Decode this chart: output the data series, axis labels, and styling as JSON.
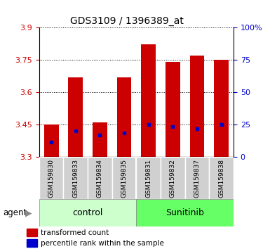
{
  "title": "GDS3109 / 1396389_at",
  "samples": [
    "GSM159830",
    "GSM159833",
    "GSM159834",
    "GSM159835",
    "GSM159831",
    "GSM159832",
    "GSM159837",
    "GSM159838"
  ],
  "groups": [
    "control",
    "control",
    "control",
    "control",
    "Sunitinib",
    "Sunitinib",
    "Sunitinib",
    "Sunitinib"
  ],
  "bar_tops": [
    3.45,
    3.67,
    3.46,
    3.67,
    3.82,
    3.74,
    3.77,
    3.75
  ],
  "bar_bottoms": [
    3.3,
    3.3,
    3.3,
    3.3,
    3.3,
    3.3,
    3.3,
    3.3
  ],
  "blue_markers": [
    3.37,
    3.42,
    3.4,
    3.41,
    3.45,
    3.44,
    3.43,
    3.45
  ],
  "ymin": 3.3,
  "ymax": 3.9,
  "yticks": [
    3.3,
    3.45,
    3.6,
    3.75,
    3.9
  ],
  "ytick_labels": [
    "3.3",
    "3.45",
    "3.6",
    "3.75",
    "3.9"
  ],
  "right_yticks": [
    0,
    25,
    50,
    75,
    100
  ],
  "right_ytick_labels": [
    "0",
    "25",
    "50",
    "75",
    "100%"
  ],
  "bar_color": "#cc0000",
  "blue_color": "#0000cc",
  "control_color": "#ccffcc",
  "sunitinib_color": "#66ff66",
  "bar_width": 0.6,
  "grid_color": "#000000",
  "tick_label_color_left": "#cc0000",
  "tick_label_color_right": "#0000cc"
}
